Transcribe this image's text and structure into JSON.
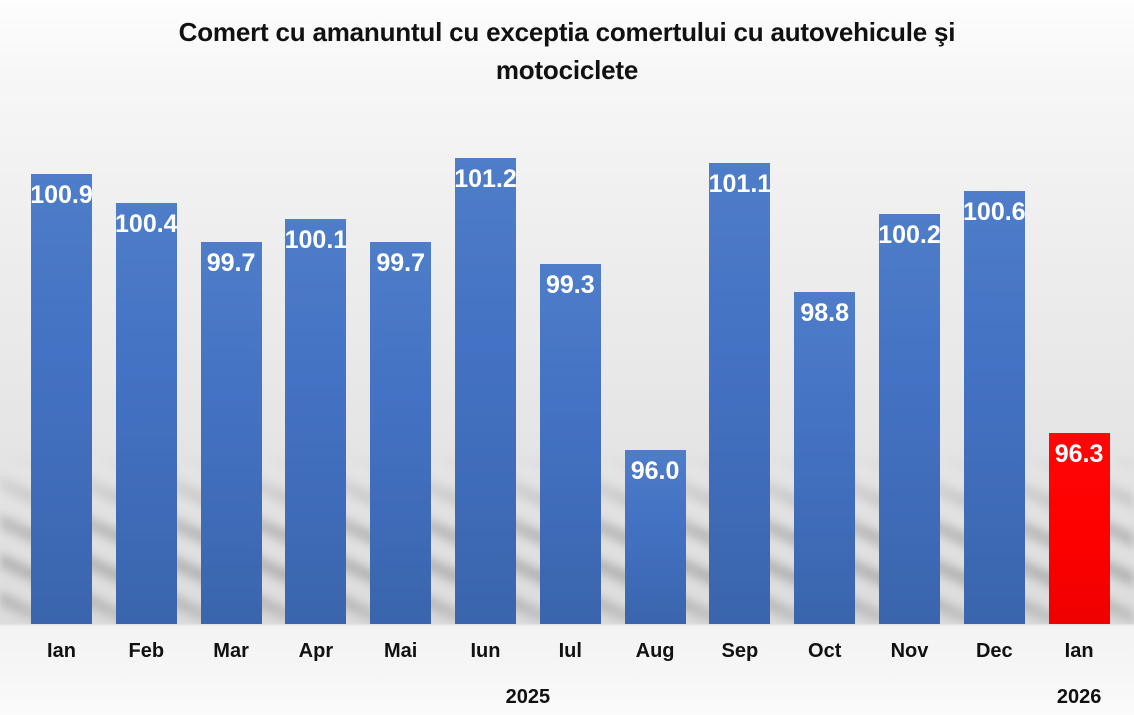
{
  "chart_data": {
    "type": "bar",
    "title": "Comert cu amanuntul cu exceptia comertului cu autovehicule şi motociclete",
    "title_lines": [
      "Comert cu amanuntul cu exceptia comertului cu autovehicule şi",
      "motociclete"
    ],
    "categories": [
      "Ian",
      "Feb",
      "Mar",
      "Apr",
      "Mai",
      "Iun",
      "Iul",
      "Aug",
      "Sep",
      "Oct",
      "Nov",
      "Dec",
      "Ian"
    ],
    "values": [
      100.9,
      100.4,
      99.7,
      100.1,
      99.7,
      101.2,
      99.3,
      96.0,
      101.1,
      98.8,
      100.2,
      100.6,
      96.3
    ],
    "value_labels": [
      "100.9",
      "100.4",
      "99.7",
      "100.1",
      "99.7",
      "101.2",
      "99.3",
      "96.0",
      "101.1",
      "98.8",
      "100.2",
      "100.6",
      "96.3"
    ],
    "year_groups": [
      {
        "label": "2025",
        "from": 0,
        "to": 11
      },
      {
        "label": "2026",
        "from": 12,
        "to": 12
      }
    ],
    "highlight_index": 12,
    "ylim": [
      92.9,
      103.4
    ],
    "grid": false,
    "legend": false,
    "xlabel": "",
    "ylabel": "",
    "colors": {
      "bar_default": "#4472c4",
      "bar_highlight": "#ff0000",
      "value_label": "#ffffff",
      "axis_label": "#111111",
      "background": "#e7e7e7"
    }
  }
}
